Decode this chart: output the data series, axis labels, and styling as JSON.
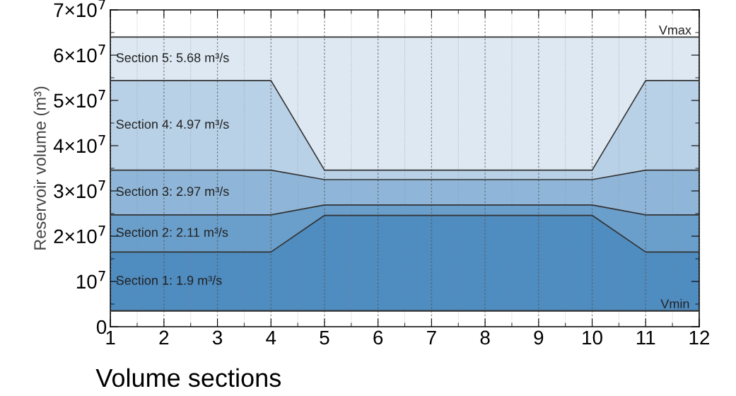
{
  "chart_data": {
    "type": "area",
    "xlabel": "Volume sections",
    "ylabel": "Reservoir volume (m³)",
    "x": [
      1,
      4,
      5,
      10,
      11,
      12
    ],
    "series": [
      {
        "name": "Section 1: 1.9 m³/s",
        "color": "#4f8cc0",
        "values": [
          16500000,
          16500000,
          24600000,
          24600000,
          16500000,
          16500000
        ]
      },
      {
        "name": "Section 2: 2.11 m³/s",
        "color": "#6a9fcb",
        "values": [
          24700000,
          24700000,
          26900000,
          26900000,
          24700000,
          24700000
        ]
      },
      {
        "name": "Section 3: 2.97 m³/s",
        "color": "#8fb6d8",
        "values": [
          34600000,
          34600000,
          32500000,
          32500000,
          34600000,
          34600000
        ]
      },
      {
        "name": "Section 4: 4.97 m³/s",
        "color": "#b9d1e7",
        "values": [
          54400000,
          54400000,
          34600000,
          34600000,
          54400000,
          54400000
        ]
      },
      {
        "name": "Section 5: 5.68 m³/s",
        "color": "#dde8f2",
        "values": [
          64000000,
          64000000,
          64000000,
          64000000,
          64000000,
          64000000
        ]
      }
    ],
    "ref_lines": [
      {
        "axis": "y",
        "value": 3500000,
        "label": "Vmin",
        "color": "#333333"
      }
    ],
    "annotations": [
      {
        "text": "Vmax",
        "x": 11.55,
        "y": 64000000
      }
    ],
    "xlim": [
      1,
      12
    ],
    "xticks": [
      1,
      2,
      3,
      4,
      5,
      6,
      7,
      8,
      9,
      10,
      11,
      12
    ],
    "ylim": [
      0,
      70000000
    ],
    "yticks": [
      0,
      {
        "value": 10000000,
        "label": "10$^{7}$"
      },
      {
        "value": 20000000,
        "label": "2×10$^{7}$"
      },
      {
        "value": 30000000,
        "label": "3×10$^{7}$"
      },
      {
        "value": 40000000,
        "label": "4×10$^{7}$"
      },
      {
        "value": 50000000,
        "label": "5×10$^{7}$"
      },
      {
        "value": 60000000,
        "label": "6×10$^{7}$"
      },
      {
        "value": 70000000,
        "label": "7×10$^{7}$"
      }
    ],
    "grid": "x",
    "line_style": "solid",
    "legend": false
  }
}
